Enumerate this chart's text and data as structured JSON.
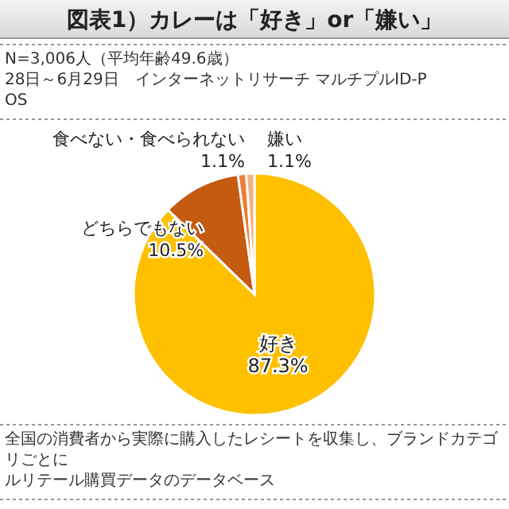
{
  "chart_data": {
    "type": "pie",
    "title": "図表1）カレーは「好き」or「嫌い」",
    "categories": [
      "好き",
      "どちらでもない",
      "食べない・食べられない",
      "嫌い"
    ],
    "values": [
      87.3,
      10.5,
      1.1,
      1.1
    ],
    "value_labels": [
      "87.3%",
      "10.5%",
      "1.1%",
      "1.1%"
    ],
    "colors": [
      "#ffc000",
      "#c55a11",
      "#ed7d31",
      "#f4b183"
    ],
    "annotations": [
      "N=3,006人（平均年齢49.6歳）",
      "28日～6月29日　インターネットリサーチ マルチプルID-POS",
      "全国の消費者から実際に購入したレシートを収集し、ブランドカテゴリごとに",
      "ルリテール購買データのデータベース"
    ]
  }
}
